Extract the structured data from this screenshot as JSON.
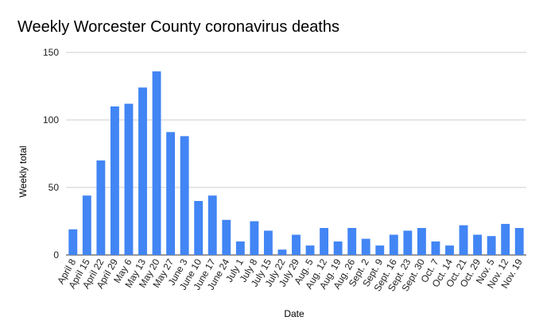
{
  "chart_data": {
    "type": "bar",
    "title": "Weekly Worcester County coronavirus deaths",
    "xlabel": "Date",
    "ylabel": "Weekly total",
    "ylim": [
      0,
      150
    ],
    "yticks": [
      0,
      50,
      100,
      150
    ],
    "grid": true,
    "legend": "none",
    "bar_color": "#4285f4",
    "categories": [
      "April 8",
      "April 15",
      "April 22",
      "April 29",
      "May 6",
      "May 13",
      "May 20",
      "May 27",
      "June 3",
      "June 10",
      "June 17",
      "June 24",
      "July 1",
      "July 8",
      "July 15",
      "July 22",
      "July 29",
      "Aug. 5",
      "Aug. 12",
      "Aug. 19",
      "Aug. 26",
      "Sept. 2",
      "Sept. 9",
      "Sept. 16",
      "Sept. 23",
      "Sept. 30",
      "Oct. 7",
      "Oct. 14",
      "Oct. 21",
      "Oct. 29",
      "Nov. 5",
      "Nov. 12",
      "Nov. 19"
    ],
    "values": [
      19,
      44,
      70,
      110,
      112,
      124,
      136,
      91,
      88,
      40,
      44,
      26,
      10,
      25,
      18,
      4,
      15,
      7,
      20,
      10,
      20,
      12,
      7,
      15,
      18,
      20,
      10,
      7,
      22,
      15,
      14,
      23,
      20
    ]
  }
}
